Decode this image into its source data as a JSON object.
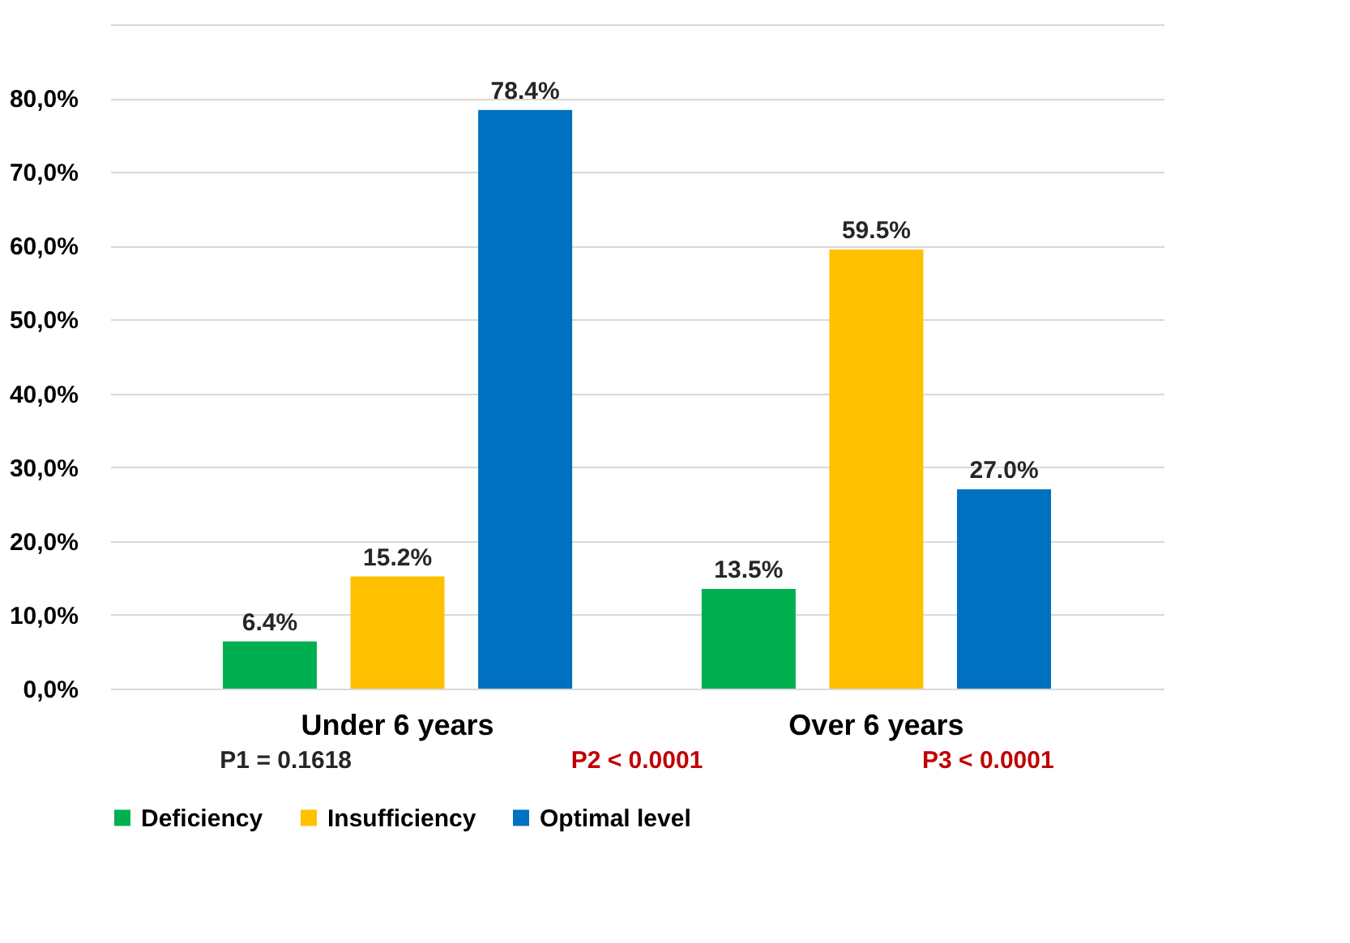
{
  "chart_data": {
    "type": "bar",
    "categories": [
      "Under 6 years",
      "Over 6 years"
    ],
    "series": [
      {
        "name": "Deficiency",
        "color": "#00b050",
        "values": [
          6.4,
          13.5
        ],
        "value_labels": [
          "6.4%",
          "13.5%"
        ]
      },
      {
        "name": "Insufficiency",
        "color": "#ffc000",
        "values": [
          15.2,
          59.5
        ],
        "value_labels": [
          "15.2%",
          "59.5%"
        ]
      },
      {
        "name": "Optimal level",
        "color": "#0070c0",
        "values": [
          78.4,
          27.0
        ],
        "value_labels": [
          "78.4%",
          "27.0%"
        ]
      }
    ],
    "ylim": [
      0,
      90
    ],
    "yticks": [
      {
        "value": 0,
        "label": "0,0%"
      },
      {
        "value": 10,
        "label": "10,0%"
      },
      {
        "value": 20,
        "label": "20,0%"
      },
      {
        "value": 30,
        "label": "30,0%"
      },
      {
        "value": 40,
        "label": "40,0%"
      },
      {
        "value": 50,
        "label": "50,0%"
      },
      {
        "value": 60,
        "label": "60,0%"
      },
      {
        "value": 70,
        "label": "70,0%"
      },
      {
        "value": 80,
        "label": "80,0%"
      },
      {
        "value": 90,
        "label": null
      }
    ],
    "grid": "y",
    "legend": "bottom",
    "annotations": [
      "P1 = 0.1618",
      "P2 < 0.0001",
      "P3 < 0.0001"
    ]
  }
}
